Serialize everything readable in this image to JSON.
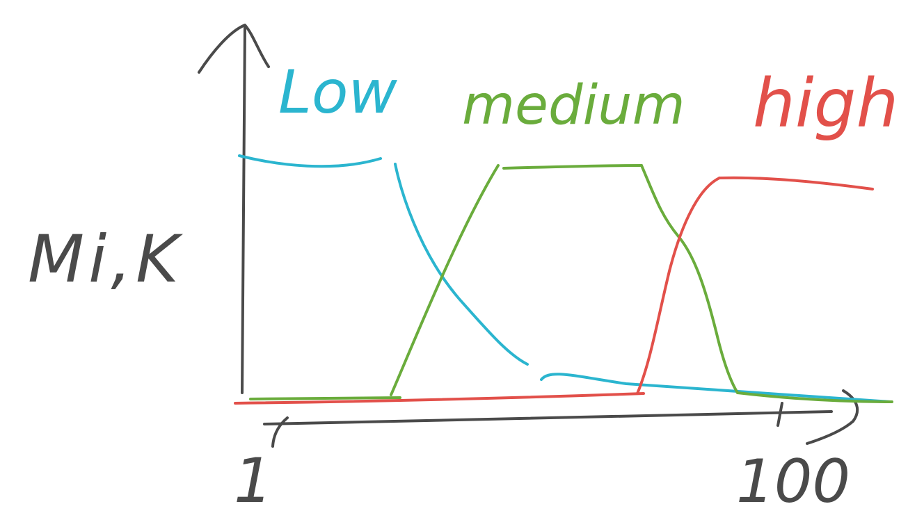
{
  "sketch": {
    "ylabel": "Mi,K",
    "x_start_label": "1",
    "x_end_label": "100",
    "ink_color": "#4a4a4a"
  },
  "memberships": [
    {
      "name": "low",
      "label": "Low",
      "color": "#2bb5cf"
    },
    {
      "name": "medium",
      "label": "medium",
      "color": "#6aac3c"
    },
    {
      "name": "high",
      "label": "high",
      "color": "#e2504a"
    }
  ]
}
